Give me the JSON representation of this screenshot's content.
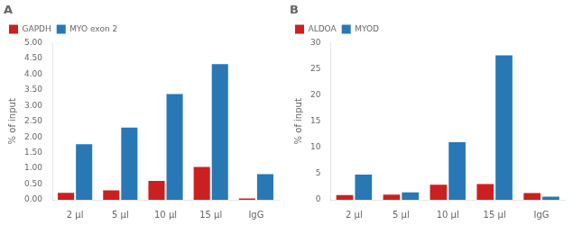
{
  "chart_data": [
    {
      "type": "bar",
      "title": "A",
      "categories": [
        "2 μl",
        "5 μl",
        "10 μl",
        "15 μl",
        "IgG"
      ],
      "series": [
        {
          "name": "GAPDH",
          "color": "#cc2020",
          "values": [
            0.22,
            0.3,
            0.6,
            1.05,
            0.04
          ]
        },
        {
          "name": "MYO exon 2",
          "color": "#2878b5",
          "values": [
            1.77,
            2.3,
            3.37,
            4.32,
            0.82
          ]
        }
      ],
      "ylabel": "% of input",
      "ylim": [
        0,
        5.0
      ],
      "yticks": [
        {
          "value": 0.0,
          "label": "0.00"
        },
        {
          "value": 0.5,
          "label": "0.50"
        },
        {
          "value": 1.0,
          "label": "1.00"
        },
        {
          "value": 1.5,
          "label": "1.50"
        },
        {
          "value": 2.0,
          "label": "2.00"
        },
        {
          "value": 2.5,
          "label": "2.50"
        },
        {
          "value": 3.0,
          "label": "3.00"
        },
        {
          "value": 3.5,
          "label": "3.50"
        },
        {
          "value": 4.0,
          "label": "4.00"
        },
        {
          "value": 4.5,
          "label": "4.50"
        },
        {
          "value": 5.0,
          "label": "5.00"
        }
      ],
      "grid": false,
      "legend": "upper left"
    },
    {
      "type": "bar",
      "title": "B",
      "categories": [
        "2 μl",
        "5 μl",
        "10 μl",
        "15 μl",
        "IgG"
      ],
      "series": [
        {
          "name": "ALDOA",
          "color": "#cc2020",
          "values": [
            0.9,
            1.0,
            2.9,
            3.0,
            1.3
          ]
        },
        {
          "name": "MYOD",
          "color": "#2878b5",
          "values": [
            4.8,
            1.4,
            11.0,
            27.6,
            0.6
          ]
        }
      ],
      "ylabel": "% of input",
      "ylim": [
        0,
        30
      ],
      "yticks": [
        0,
        5,
        10,
        15,
        20,
        25,
        30
      ],
      "grid": false,
      "legend": "upper left"
    }
  ]
}
